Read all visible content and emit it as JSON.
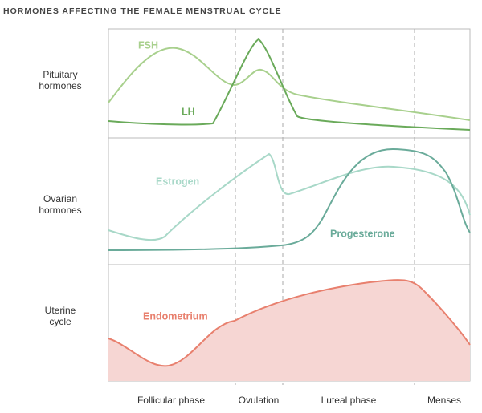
{
  "title": "HORMONES AFFECTING THE FEMALE MENSTRUAL CYCLE",
  "rows": [
    {
      "label": [
        "Pituitary",
        "hormones"
      ]
    },
    {
      "label": [
        "Ovarian",
        "hormones"
      ]
    },
    {
      "label": [
        "Uterine",
        "cycle"
      ]
    }
  ],
  "curves": {
    "fsh": "FSH",
    "lh": "LH",
    "estrogen": "Estrogen",
    "progesterone": "Progesterone",
    "endometrium": "Endometrium"
  },
  "phases": [
    "Follicular phase",
    "Ovulation",
    "Luteal phase",
    "Menses"
  ]
}
